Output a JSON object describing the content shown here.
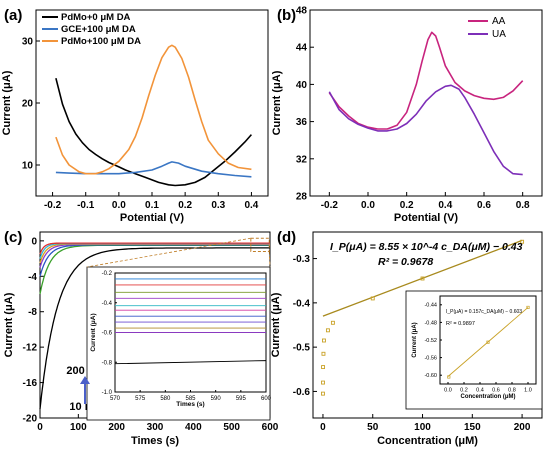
{
  "chart_data": [
    {
      "panel": "(a)",
      "type": "line",
      "xlabel": "Potential (V)",
      "ylabel": "Current (μA)",
      "xlim": [
        -0.25,
        0.45
      ],
      "ylim": [
        5,
        35
      ],
      "xticks": [
        "-0.2",
        "-0.1",
        "0.0",
        "0.1",
        "0.2",
        "0.3",
        "0.4"
      ],
      "yticks": [
        "10",
        "20",
        "30"
      ],
      "legend_position": "top-left",
      "series": [
        {
          "name": "PdMo+0 μM DA",
          "color": "#000000",
          "x": [
            -0.19,
            -0.17,
            -0.15,
            -0.13,
            -0.11,
            -0.09,
            -0.07,
            -0.05,
            -0.03,
            0.0,
            0.02,
            0.05,
            0.08,
            0.1,
            0.12,
            0.15,
            0.17,
            0.2,
            0.23,
            0.26,
            0.29,
            0.32,
            0.35,
            0.38,
            0.4
          ],
          "y": [
            24,
            19.8,
            17,
            15,
            13.6,
            12.5,
            11.7,
            11,
            10.4,
            9.7,
            9.2,
            8.6,
            8,
            7.6,
            7.2,
            6.8,
            6.7,
            6.8,
            7.2,
            8,
            9.3,
            10.6,
            12.1,
            13.7,
            14.9
          ]
        },
        {
          "name": "GCE+100 μM DA",
          "color": "#3a76c4",
          "x": [
            -0.19,
            -0.15,
            -0.1,
            -0.05,
            0.0,
            0.05,
            0.1,
            0.13,
            0.15,
            0.16,
            0.18,
            0.2,
            0.25,
            0.3,
            0.35,
            0.4
          ],
          "y": [
            8.8,
            8.7,
            8.6,
            8.6,
            8.6,
            8.8,
            9.2,
            9.8,
            10.3,
            10.5,
            10.3,
            9.8,
            9,
            8.6,
            8.3,
            8.1
          ]
        },
        {
          "name": "PdMo+100 μM DA",
          "color": "#f2943a",
          "x": [
            -0.19,
            -0.17,
            -0.15,
            -0.12,
            -0.1,
            -0.07,
            -0.05,
            -0.03,
            0.0,
            0.03,
            0.05,
            0.07,
            0.09,
            0.11,
            0.13,
            0.15,
            0.16,
            0.17,
            0.19,
            0.21,
            0.23,
            0.25,
            0.27,
            0.3,
            0.33,
            0.36,
            0.4
          ],
          "y": [
            14.5,
            11.6,
            10,
            8.9,
            8.6,
            8.6,
            8.9,
            9.4,
            10.6,
            12.5,
            14.6,
            17.6,
            21.2,
            24.5,
            27.3,
            29,
            29.3,
            29,
            27.2,
            24.2,
            20.5,
            17,
            14,
            11.8,
            10.3,
            9.6,
            9.3
          ]
        }
      ]
    },
    {
      "panel": "(b)",
      "type": "line",
      "xlabel": "Potential (V)",
      "ylabel": "Current (μA)",
      "xlim": [
        -0.3,
        0.9
      ],
      "ylim": [
        28,
        48
      ],
      "xticks": [
        "-0.2",
        "0.0",
        "0.2",
        "0.4",
        "0.6",
        "0.8"
      ],
      "yticks": [
        "28",
        "32",
        "36",
        "40",
        "44",
        "48"
      ],
      "legend_position": "top-right",
      "series": [
        {
          "name": "AA",
          "color": "#c8247e",
          "x": [
            -0.2,
            -0.15,
            -0.1,
            -0.05,
            0.0,
            0.05,
            0.1,
            0.15,
            0.2,
            0.25,
            0.28,
            0.31,
            0.33,
            0.35,
            0.37,
            0.4,
            0.45,
            0.5,
            0.55,
            0.6,
            0.65,
            0.7,
            0.75,
            0.8
          ],
          "y": [
            39.1,
            37.6,
            36.6,
            35.8,
            35.4,
            35.2,
            35.2,
            35.6,
            37,
            40,
            42.5,
            44.8,
            45.6,
            45.2,
            44,
            42,
            40.2,
            39.3,
            38.8,
            38.5,
            38.4,
            38.6,
            39.3,
            40.4
          ]
        },
        {
          "name": "UA",
          "color": "#7d2fb8",
          "x": [
            -0.2,
            -0.15,
            -0.1,
            -0.05,
            0.0,
            0.05,
            0.1,
            0.15,
            0.2,
            0.25,
            0.3,
            0.35,
            0.4,
            0.43,
            0.47,
            0.5,
            0.55,
            0.6,
            0.65,
            0.7,
            0.75,
            0.8
          ],
          "y": [
            39.2,
            37.3,
            36.3,
            35.7,
            35.3,
            35,
            35,
            35.2,
            35.8,
            36.8,
            38.2,
            39.2,
            39.8,
            39.9,
            39.5,
            38.6,
            36.8,
            34.8,
            32.8,
            31.2,
            30.4,
            30.3
          ]
        }
      ]
    },
    {
      "panel": "(c)",
      "type": "line",
      "xlabel": "Times (s)",
      "ylabel": "Current (μA)",
      "xlim": [
        0,
        600
      ],
      "ylim": [
        -20,
        1
      ],
      "xticks": [
        "0",
        "100",
        "200",
        "300",
        "400",
        "500",
        "600"
      ],
      "yticks": [
        "0",
        "-4",
        "-8",
        "-12",
        "-16",
        "-20"
      ],
      "annotation_top": "200 μM",
      "annotation_bottom": "10 nM",
      "series": [
        {
          "color": "#000000",
          "t0": -19,
          "tinf": -0.8,
          "tau": 45
        },
        {
          "color": "#3aa02a",
          "t0": -6,
          "tinf": -0.5,
          "tau": 25
        },
        {
          "color": "#2b54c2",
          "t0": -4,
          "tinf": -0.45,
          "tau": 22
        },
        {
          "color": "#8f3ccc",
          "t0": -3,
          "tinf": -0.4,
          "tau": 18
        },
        {
          "color": "#d9a020",
          "t0": -2.5,
          "tinf": -0.35,
          "tau": 15
        },
        {
          "color": "#30b7d6",
          "t0": -2,
          "tinf": -0.3,
          "tau": 12
        },
        {
          "color": "#e02e2e",
          "t0": -1.5,
          "tinf": -0.25,
          "tau": 10
        }
      ],
      "inset": {
        "xlabel": "Times (s)",
        "ylabel": "Current (μA)",
        "xlim": [
          570,
          600
        ],
        "ylim": [
          -1.0,
          -0.2
        ],
        "xticks": [
          "570",
          "575",
          "580",
          "585",
          "590",
          "595",
          "600"
        ],
        "yticks": [
          "-0.2",
          "-0.4",
          "-0.6",
          "-0.8",
          "-1.0"
        ],
        "levels": [
          {
            "y": -0.24,
            "color": "#1e7bd6"
          },
          {
            "y": -0.28,
            "color": "#e23a3a"
          },
          {
            "y": -0.33,
            "color": "#7a9a2a"
          },
          {
            "y": -0.37,
            "color": "#9a3cc6"
          },
          {
            "y": -0.42,
            "color": "#2fb7c4"
          },
          {
            "y": -0.45,
            "color": "#d23aa0"
          },
          {
            "y": -0.49,
            "color": "#3456c8"
          },
          {
            "y": -0.53,
            "color": "#6b4bd0"
          },
          {
            "y": -0.57,
            "color": "#b08a2a"
          },
          {
            "y": -0.6,
            "color": "#8a3ac0"
          },
          {
            "y": -0.81,
            "color": "#000000",
            "slope": 0.0007
          }
        ]
      }
    },
    {
      "panel": "(d)",
      "type": "scatter",
      "xlabel": "Concentration (μM)",
      "ylabel": "Current (μA)",
      "xlim": [
        -10,
        220
      ],
      "ylim": [
        -0.66,
        -0.24
      ],
      "xticks": [
        "0",
        "50",
        "100",
        "150",
        "200"
      ],
      "yticks": [
        "-0.3",
        "-0.4",
        "-0.5",
        "-0.6"
      ],
      "equation": "I_P(μA) = 8.55 × 10^-4 c_DA(μM) − 0.43",
      "r2": "R² = 0.9678",
      "color": "#c9a227",
      "fit": {
        "slope": 0.000855,
        "intercept": -0.43,
        "x": [
          0,
          200
        ]
      },
      "points": [
        {
          "x": 0.01,
          "y": -0.605
        },
        {
          "x": 0.05,
          "y": -0.58
        },
        {
          "x": 0.1,
          "y": -0.545
        },
        {
          "x": 0.5,
          "y": -0.515
        },
        {
          "x": 1,
          "y": -0.485
        },
        {
          "x": 5,
          "y": -0.462
        },
        {
          "x": 10,
          "y": -0.445
        },
        {
          "x": 50,
          "y": -0.39
        },
        {
          "x": 100,
          "y": -0.345
        },
        {
          "x": 200,
          "y": -0.262
        }
      ],
      "inset": {
        "xlabel": "Concentration (μM)",
        "ylabel": "Current (μA)",
        "xlim": [
          -0.1,
          1.1
        ],
        "ylim": [
          -0.62,
          -0.42
        ],
        "xticks": [
          "0.0",
          "0.2",
          "0.4",
          "0.6",
          "0.8",
          "1.0"
        ],
        "yticks": [
          "-0.44",
          "-0.48",
          "-0.52",
          "-0.56",
          "-0.60"
        ],
        "equation": "I_P(μA) = 0.157c_DA(μM) − 0.603",
        "r2": "R² = 0.9897",
        "fit": {
          "slope": 0.157,
          "intercept": -0.603,
          "x": [
            0.0,
            1.0
          ]
        },
        "points": [
          {
            "x": 0.01,
            "y": -0.604
          },
          {
            "x": 0.5,
            "y": -0.525
          },
          {
            "x": 1.0,
            "y": -0.446
          }
        ]
      }
    }
  ],
  "panels": {
    "a": {
      "label": "(a)"
    },
    "b": {
      "label": "(b)"
    },
    "c": {
      "label": "(c)"
    },
    "d": {
      "label": "(d)"
    }
  }
}
